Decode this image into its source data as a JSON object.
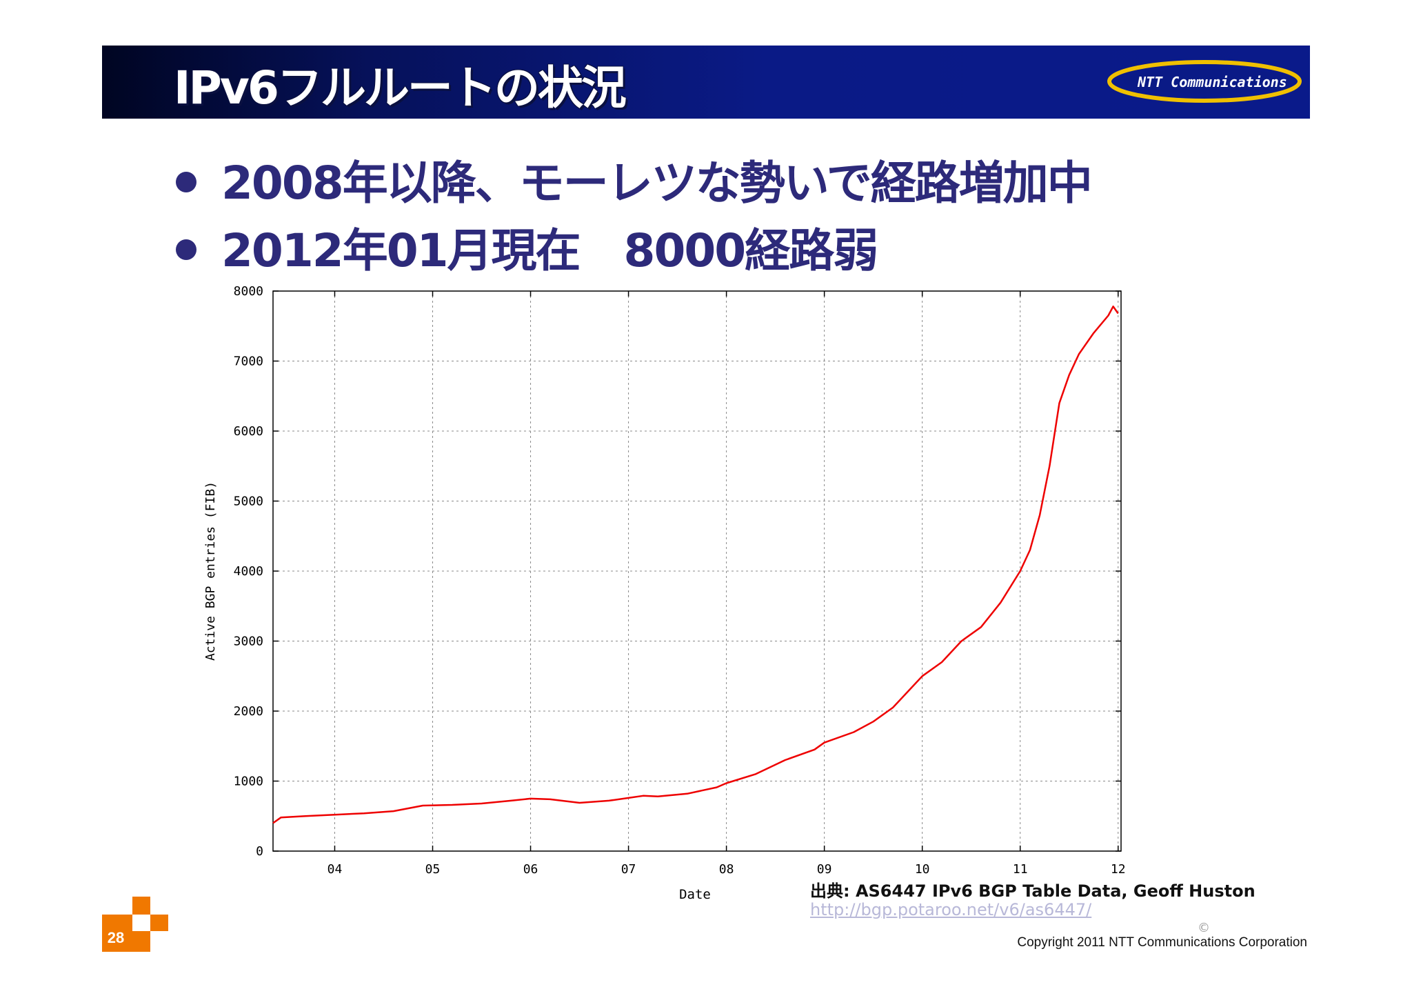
{
  "slide": {
    "title": "IPv6フルルートの状況",
    "bullets": [
      "2008年以降、モーレツな勢いで経路増加中",
      "2012年01月現在　8000経路弱"
    ],
    "logo_text": "NTT Communications",
    "source": "出典:  AS6447 IPv6 BGP Table Data, Geoff Huston",
    "source_url": "http://bgp.potaroo.net/v6/as6447/",
    "copyright_mark": "©",
    "copyright": "Copyright 2011 NTT Communications Corporation",
    "page_number": "28",
    "colors": {
      "header": "#0a1a86",
      "bullet_text": "#2d2a7a",
      "accent": "#f07800",
      "series": "#ee0000"
    }
  },
  "chart_data": {
    "type": "line",
    "xlabel": "Date",
    "ylabel": "Active BGP entries (FIB)",
    "x_unit": "year",
    "xlim": [
      2003.37,
      2012.03
    ],
    "ylim": [
      0,
      8000
    ],
    "x_ticks": [
      {
        "label": "04",
        "value": 2004.0
      },
      {
        "label": "05",
        "value": 2005.0
      },
      {
        "label": "06",
        "value": 2006.0
      },
      {
        "label": "07",
        "value": 2007.0
      },
      {
        "label": "08",
        "value": 2008.0
      },
      {
        "label": "09",
        "value": 2009.0
      },
      {
        "label": "10",
        "value": 2010.0
      },
      {
        "label": "11",
        "value": 2011.0
      },
      {
        "label": "12",
        "value": 2012.0
      }
    ],
    "y_ticks": [
      0,
      1000,
      2000,
      3000,
      4000,
      5000,
      6000,
      7000,
      8000
    ],
    "grid": true,
    "series": [
      {
        "color": "#ee0000",
        "points": [
          [
            2003.37,
            400
          ],
          [
            2003.45,
            480
          ],
          [
            2003.7,
            500
          ],
          [
            2004.0,
            520
          ],
          [
            2004.3,
            540
          ],
          [
            2004.6,
            570
          ],
          [
            2004.9,
            650
          ],
          [
            2005.2,
            660
          ],
          [
            2005.5,
            680
          ],
          [
            2005.8,
            720
          ],
          [
            2006.0,
            750
          ],
          [
            2006.2,
            740
          ],
          [
            2006.5,
            690
          ],
          [
            2006.8,
            720
          ],
          [
            2007.0,
            760
          ],
          [
            2007.15,
            790
          ],
          [
            2007.3,
            780
          ],
          [
            2007.6,
            820
          ],
          [
            2007.9,
            910
          ],
          [
            2008.0,
            970
          ],
          [
            2008.3,
            1100
          ],
          [
            2008.6,
            1300
          ],
          [
            2008.9,
            1450
          ],
          [
            2009.0,
            1550
          ],
          [
            2009.3,
            1700
          ],
          [
            2009.5,
            1850
          ],
          [
            2009.7,
            2050
          ],
          [
            2009.9,
            2350
          ],
          [
            2010.0,
            2500
          ],
          [
            2010.2,
            2700
          ],
          [
            2010.4,
            3000
          ],
          [
            2010.6,
            3200
          ],
          [
            2010.8,
            3550
          ],
          [
            2011.0,
            4000
          ],
          [
            2011.1,
            4300
          ],
          [
            2011.2,
            4800
          ],
          [
            2011.3,
            5500
          ],
          [
            2011.4,
            6400
          ],
          [
            2011.5,
            6800
          ],
          [
            2011.6,
            7100
          ],
          [
            2011.75,
            7400
          ],
          [
            2011.9,
            7650
          ],
          [
            2011.95,
            7780
          ],
          [
            2012.0,
            7680
          ]
        ]
      }
    ]
  }
}
